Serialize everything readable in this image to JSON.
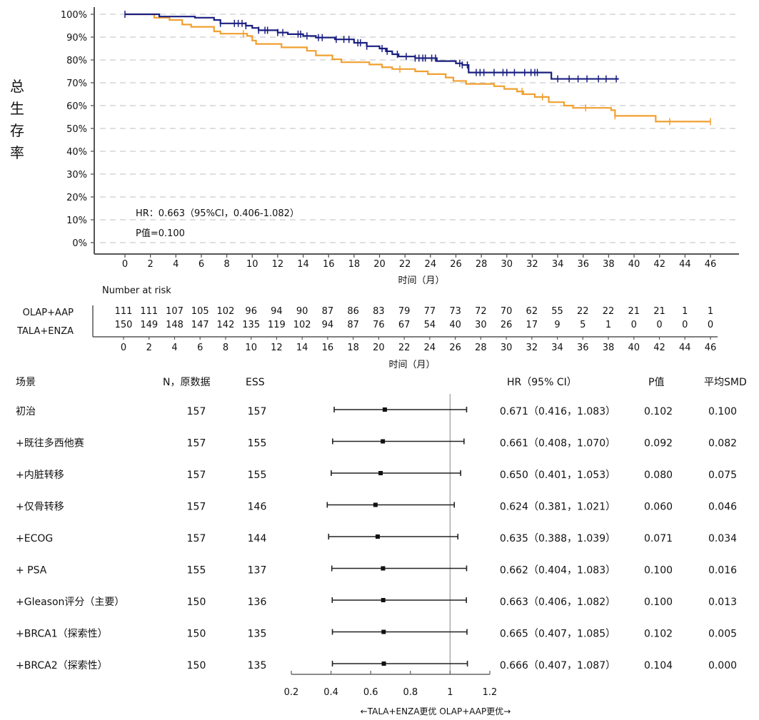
{
  "chart_data": [
    {
      "type": "line",
      "subtype": "kaplan-meier",
      "ylabel": "总生存率",
      "xlabel": "时间（月）",
      "xlim": [
        0,
        46
      ],
      "ylim": [
        0,
        100
      ],
      "x_ticks": [
        "0",
        "2",
        "4",
        "6",
        "8",
        "10",
        "12",
        "14",
        "16",
        "18",
        "20",
        "22",
        "24",
        "26",
        "28",
        "30",
        "32",
        "34",
        "36",
        "38",
        "40",
        "42",
        "44",
        "46"
      ],
      "y_ticks": [
        "0%",
        "10%",
        "20%",
        "30%",
        "40%",
        "50%",
        "60%",
        "70%",
        "80%",
        "90%",
        "100%"
      ],
      "grid": "horizontal-dashed",
      "annotations": {
        "hr": "HR：0.663（95%CI，0.406-1.082）",
        "p": "P值=0.100"
      },
      "series": [
        {
          "name": "OLAP+AAP",
          "color": "#f0a030",
          "steps": [
            [
              0,
              100
            ],
            [
              2,
              100
            ],
            [
              2.3,
              98.5
            ],
            [
              3.5,
              97.5
            ],
            [
              4.5,
              95.5
            ],
            [
              5.2,
              94.5
            ],
            [
              7,
              92.5
            ],
            [
              7.5,
              91.5
            ],
            [
              9.6,
              90.5
            ],
            [
              10,
              88.5
            ],
            [
              10.3,
              87
            ],
            [
              12.3,
              85.5
            ],
            [
              14.3,
              84
            ],
            [
              15,
              82
            ],
            [
              16.3,
              80.3
            ],
            [
              17,
              79
            ],
            [
              19.2,
              78
            ],
            [
              20.2,
              76.8
            ],
            [
              21,
              76
            ],
            [
              22.8,
              75
            ],
            [
              23.8,
              73.8
            ],
            [
              25.2,
              72.3
            ],
            [
              25.8,
              70.8
            ],
            [
              26.8,
              69.5
            ],
            [
              29,
              68.5
            ],
            [
              29.8,
              67.3
            ],
            [
              30.8,
              66.2
            ],
            [
              31.3,
              65
            ],
            [
              32.2,
              63.8
            ],
            [
              33.3,
              61.5
            ],
            [
              34.5,
              60
            ],
            [
              35.2,
              59
            ],
            [
              38.2,
              58
            ],
            [
              38.5,
              55.5
            ],
            [
              41.7,
              53
            ]
          ],
          "end": 46,
          "censors": [
            9.3,
            21.6,
            31.2,
            32.8,
            36.2,
            38.5,
            42.8,
            46
          ]
        },
        {
          "name": "TALA+ENZA",
          "color": "#1a1f80",
          "steps": [
            [
              0,
              100
            ],
            [
              2.7,
              99
            ],
            [
              5.5,
              98.5
            ],
            [
              7,
              97.5
            ],
            [
              7.5,
              96
            ],
            [
              9.5,
              95
            ],
            [
              10,
              94
            ],
            [
              10.5,
              93
            ],
            [
              12,
              92
            ],
            [
              12.8,
              91.3
            ],
            [
              14,
              90.5
            ],
            [
              15,
              89.8
            ],
            [
              16.5,
              89
            ],
            [
              18,
              87.5
            ],
            [
              19,
              86
            ],
            [
              20,
              85
            ],
            [
              20.5,
              83.8
            ],
            [
              21,
              82.5
            ],
            [
              21.5,
              81.5
            ],
            [
              22.8,
              80.8
            ],
            [
              24.5,
              79.5
            ],
            [
              26,
              78.5
            ],
            [
              26.5,
              77.8
            ],
            [
              27,
              74.5
            ],
            [
              33.5,
              71.7
            ]
          ],
          "end": 38.8,
          "censors": [
            0,
            7.5,
            8.6,
            8.9,
            9.2,
            9.5,
            10.5,
            11,
            11.2,
            12,
            12.4,
            13.6,
            13.8,
            14.3,
            15.2,
            15.5,
            16.6,
            17.2,
            17.6,
            18.3,
            18.5,
            19,
            20.2,
            20.6,
            21.4,
            22.1,
            22.8,
            23.1,
            23.4,
            23.6,
            24.1,
            24.4,
            26.3,
            26.5,
            26.9,
            27.6,
            27.9,
            28.2,
            29,
            29.7,
            30,
            30.6,
            31.4,
            31.9,
            32.2,
            32.4,
            34,
            34.9,
            35.6,
            36.3,
            37.2,
            37.8,
            38.6
          ]
        }
      ],
      "risk_table": {
        "title": "Number at risk",
        "times": [
          "0",
          "2",
          "4",
          "6",
          "8",
          "10",
          "12",
          "14",
          "16",
          "18",
          "20",
          "22",
          "24",
          "26",
          "28",
          "30",
          "32",
          "34",
          "36",
          "38",
          "40",
          "42",
          "44",
          "46"
        ],
        "rows": [
          {
            "name": "OLAP+AAP",
            "color": "#e0aa66",
            "values": [
              "111",
              "111",
              "107",
              "105",
              "102",
              "96",
              "94",
              "90",
              "87",
              "86",
              "83",
              "79",
              "77",
              "73",
              "72",
              "70",
              "62",
              "55",
              "22",
              "22",
              "21",
              "21",
              "1",
              "1"
            ]
          },
          {
            "name": "TALA+ENZA",
            "color": "#2b2f7a",
            "values": [
              "150",
              "149",
              "148",
              "147",
              "142",
              "135",
              "119",
              "102",
              "94",
              "87",
              "76",
              "67",
              "54",
              "40",
              "30",
              "26",
              "17",
              "9",
              "5",
              "1",
              "0",
              "0",
              "0",
              "0"
            ]
          }
        ],
        "xlabel": "时间（月）"
      }
    },
    {
      "type": "forest",
      "headers": {
        "scenario": "场景",
        "n": "N，原数据",
        "ess": "ESS",
        "hr": "HR（95% CI）",
        "p": "P值",
        "smd": "平均SMD"
      },
      "xlim": [
        0.2,
        1.2
      ],
      "x_ticks": [
        "0.2",
        "0.4",
        "0.6",
        "0.8",
        "1",
        "1.2"
      ],
      "reference_line": 1,
      "x_caption": "←TALA+ENZA更优   OLAP+AAP更优→",
      "rows": [
        {
          "label": "初治",
          "n": "157",
          "ess": "157",
          "hr": 0.671,
          "lo": 0.416,
          "hi": 1.083,
          "hr_text": "0.671（0.416，1.083）",
          "p": "0.102",
          "smd": "0.100"
        },
        {
          "label": "+既往多西他赛",
          "n": "157",
          "ess": "155",
          "hr": 0.661,
          "lo": 0.408,
          "hi": 1.07,
          "hr_text": "0.661（0.408，1.070）",
          "p": "0.092",
          "smd": "0.082"
        },
        {
          "label": "+内脏转移",
          "n": "157",
          "ess": "155",
          "hr": 0.65,
          "lo": 0.401,
          "hi": 1.053,
          "hr_text": "0.650（0.401，1.053）",
          "p": "0.080",
          "smd": "0.075"
        },
        {
          "label": "+仅骨转移",
          "n": "157",
          "ess": "146",
          "hr": 0.624,
          "lo": 0.381,
          "hi": 1.021,
          "hr_text": "0.624（0.381，1.021）",
          "p": "0.060",
          "smd": "0.046"
        },
        {
          "label": "+ECOG",
          "n": "157",
          "ess": "144",
          "hr": 0.635,
          "lo": 0.388,
          "hi": 1.039,
          "hr_text": "0.635（0.388，1.039）",
          "p": "0.071",
          "smd": "0.034"
        },
        {
          "label": "+ PSA",
          "n": "155",
          "ess": "137",
          "hr": 0.662,
          "lo": 0.404,
          "hi": 1.083,
          "hr_text": "0.662（0.404，1.083）",
          "p": "0.100",
          "smd": "0.016"
        },
        {
          "label": "+Gleason评分（主要）",
          "n": "150",
          "ess": "136",
          "hr": 0.663,
          "lo": 0.406,
          "hi": 1.082,
          "hr_text": "0.663（0.406，1.082）",
          "p": "0.100",
          "smd": "0.013"
        },
        {
          "label": "+BRCA1（探索性）",
          "n": "150",
          "ess": "135",
          "hr": 0.665,
          "lo": 0.407,
          "hi": 1.085,
          "hr_text": "0.665（0.407，1.085）",
          "p": "0.102",
          "smd": "0.005"
        },
        {
          "label": "+BRCA2（探索性）",
          "n": "150",
          "ess": "135",
          "hr": 0.666,
          "lo": 0.407,
          "hi": 1.087,
          "hr_text": "0.666（0.407，1.087）",
          "p": "0.104",
          "smd": "0.000"
        }
      ]
    }
  ]
}
